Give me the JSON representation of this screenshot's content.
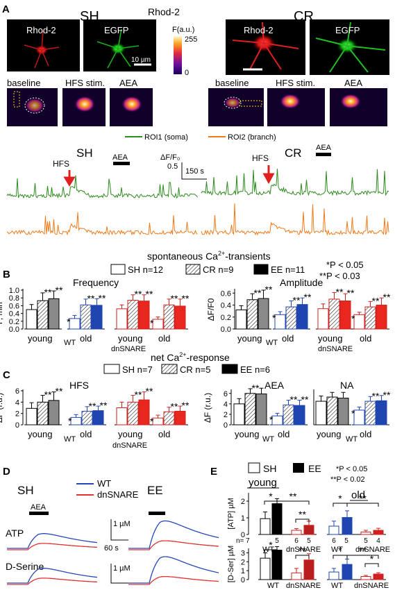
{
  "panel_letters": {
    "A": "A",
    "B": "B",
    "C": "C",
    "D": "D",
    "E": "E"
  },
  "panel_a": {
    "sh_label": "SH",
    "cr_label": "CR",
    "center_label": "Rhod-2",
    "rhod_label": "Rhod-2",
    "egfp_label": "EGFP",
    "colorbar_title": "F(a.u.)",
    "colorbar_max": "255",
    "colorbar_min": "0",
    "scalebar_label": "10 µm",
    "row2_labels": [
      "baseline",
      "HFS stim.",
      "AEA"
    ],
    "legend_roi1": "ROI1 (soma)",
    "legend_roi2": "ROI2 (branch)",
    "hfs_label": "HFS",
    "aea_label": "AEA",
    "df_label": "ΔF/F₀",
    "df_value": "0.5",
    "time_scale": "150 s",
    "colors": {
      "green": "#2e8b1f",
      "orange": "#f07a1a",
      "red": "#e02020"
    }
  },
  "panel_b": {
    "title_main": "spontaneous Ca",
    "title_sup": "2+",
    "title_rest": "-transients",
    "legend": [
      {
        "label": "SH n=12",
        "style": "open"
      },
      {
        "label": "CR  n=9",
        "style": "hatched"
      },
      {
        "label": "EE  n=11",
        "style": "filled"
      }
    ],
    "sig1": "*P < 0.05",
    "sig2": "**P < 0.03",
    "freq_title": "Frequency",
    "amp_title": "Amplitude",
    "freq_ylabel": "F, min⁻¹",
    "amp_ylabel": "ΔF/F0",
    "freq_ticks": [
      "0.0",
      "0.2",
      "0.4",
      "0.6",
      "0.8",
      "1.0"
    ],
    "amp_ticks": [
      "0.0",
      "0.2",
      "0.4",
      "0.6"
    ],
    "young": "young",
    "old": "old",
    "wt": "WT",
    "dnsnare": "dnSNARE"
  },
  "panel_c": {
    "title_main": "net Ca",
    "title_sup": "2+",
    "title_rest": "-response",
    "legend": [
      {
        "label": "SH n=7"
      },
      {
        "label": "CR  n=5"
      },
      {
        "label": "EE  n=6"
      }
    ],
    "hfs_title": "HFS",
    "aea_title": "AEA",
    "na_title": "NA",
    "ylabel": "ΔF (r.u.)",
    "hfs_ticks": [
      "0",
      "2",
      "4",
      "6"
    ],
    "aea_ticks": [
      "0",
      "2",
      "4",
      "6"
    ]
  },
  "panel_d": {
    "sh_label": "SH",
    "ee_label": "EE",
    "aea_label": "AEA",
    "wt_label": "WT",
    "dn_label": "dnSNARE",
    "atp_label": "ATP",
    "dser_label": "D-Serine",
    "scale_um": "1 µM",
    "scale_time": "60 s",
    "colors": {
      "wt": "#2447b8",
      "dn": "#e23030"
    }
  },
  "panel_e": {
    "sh_label": "SH",
    "ee_label": "EE",
    "sig1": "*P < 0.05",
    "sig2": "**P < 0.02",
    "young": "young",
    "old": "old",
    "atp_ylabel": "[ATP] µM",
    "dser_ylabel": "[D-Ser] µM",
    "atp_ticks": [
      "0",
      "1",
      "2"
    ],
    "dser_ticks": [
      "0",
      "1",
      "2",
      "3"
    ],
    "n_label": "n= 7",
    "n_values": [
      "5",
      "6",
      "5",
      "6",
      "5",
      "5",
      "4"
    ],
    "wt": "WT",
    "dnsnare": "dnSNARE"
  },
  "chart_data": [
    {
      "type": "bar",
      "id": "B-frequency",
      "title": "Frequency",
      "ylabel": "F, min⁻¹",
      "ylim": [
        0,
        1.0
      ],
      "categories": [
        "young WT",
        "old WT",
        "young dnSNARE",
        "old dnSNARE"
      ],
      "series": [
        {
          "name": "SH n=12",
          "values": [
            0.5,
            0.27,
            0.52,
            0.25
          ]
        },
        {
          "name": "CR n=9",
          "values": [
            0.73,
            0.62,
            0.74,
            0.62
          ]
        },
        {
          "name": "EE n=11",
          "values": [
            0.78,
            0.61,
            0.72,
            0.59
          ]
        }
      ],
      "errors": [
        [
          0.13,
          0.08,
          0.1,
          0.06
        ],
        [
          0.2,
          0.15,
          0.14,
          0.15
        ],
        [
          0.2,
          0.17,
          0.16,
          0.18
        ]
      ],
      "stars": [
        [
          "",
          "*",
          "",
          "*"
        ],
        [
          "**",
          "**",
          "**",
          "**"
        ],
        [
          "**",
          "**",
          "**",
          "**"
        ]
      ]
    },
    {
      "type": "bar",
      "id": "B-amplitude",
      "title": "Amplitude",
      "ylabel": "ΔF/F0",
      "ylim": [
        0,
        0.65
      ],
      "categories": [
        "young WT",
        "old WT",
        "young dnSNARE",
        "old dnSNARE"
      ],
      "series": [
        {
          "name": "SH n=12",
          "values": [
            0.32,
            0.24,
            0.34,
            0.24
          ]
        },
        {
          "name": "CR n=9",
          "values": [
            0.49,
            0.37,
            0.5,
            0.37
          ]
        },
        {
          "name": "EE n=11",
          "values": [
            0.51,
            0.41,
            0.47,
            0.4
          ]
        }
      ],
      "errors": [
        [
          0.07,
          0.05,
          0.08,
          0.04
        ],
        [
          0.1,
          0.1,
          0.11,
          0.09
        ],
        [
          0.14,
          0.11,
          0.12,
          0.12
        ]
      ],
      "stars": [
        [
          "",
          "*",
          "",
          "*"
        ],
        [
          "**",
          "**",
          "**",
          "**"
        ],
        [
          "**",
          "**",
          "**",
          "**"
        ]
      ]
    },
    {
      "type": "bar",
      "id": "C-HFS",
      "title": "HFS",
      "ylabel": "ΔF (r.u.)",
      "ylim": [
        0,
        6
      ],
      "categories": [
        "young WT",
        "old WT",
        "young dnSNARE",
        "old dnSNARE"
      ],
      "series": [
        {
          "name": "SH n=7",
          "values": [
            2.9,
            1.3,
            3.0,
            1.2
          ]
        },
        {
          "name": "CR n=5",
          "values": [
            4.0,
            2.4,
            4.0,
            2.3
          ]
        },
        {
          "name": "EE n=6",
          "values": [
            4.3,
            2.5,
            4.4,
            2.4
          ]
        }
      ],
      "errors": [
        [
          1.0,
          0.5,
          1.0,
          0.5
        ],
        [
          1.2,
          0.8,
          1.2,
          0.8
        ],
        [
          1.5,
          0.8,
          1.4,
          0.9
        ]
      ],
      "stars": [
        [
          "",
          "*",
          "",
          "*"
        ],
        [
          "**",
          "**",
          "**",
          "**"
        ],
        [
          "**",
          "**",
          "**",
          "**"
        ]
      ]
    },
    {
      "type": "bar",
      "id": "C-AEA",
      "title": "AEA",
      "ylabel": "ΔF (r.u.)",
      "ylim": [
        0,
        6.5
      ],
      "categories": [
        "young WT",
        "old WT"
      ],
      "series": [
        {
          "name": "SH n=7",
          "values": [
            4.0,
            1.7
          ]
        },
        {
          "name": "CR n=5",
          "values": [
            6.0,
            3.8
          ]
        },
        {
          "name": "EE n=6",
          "values": [
            5.9,
            3.7
          ]
        }
      ],
      "errors": [
        [
          1.0,
          0.5
        ],
        [
          0.9,
          0.9
        ],
        [
          1.1,
          1.0
        ]
      ],
      "stars": [
        [
          "",
          "*"
        ],
        [
          "**",
          "**"
        ],
        [
          "",
          "**"
        ]
      ]
    },
    {
      "type": "bar",
      "id": "C-NA",
      "title": "NA",
      "ylabel": "ΔF (r.u.)",
      "ylim": [
        0,
        6.5
      ],
      "categories": [
        "young WT",
        "old WT"
      ],
      "series": [
        {
          "name": "SH n=7",
          "values": [
            4.5,
            2.8
          ]
        },
        {
          "name": "CR n=5",
          "values": [
            5.3,
            4.5
          ]
        },
        {
          "name": "EE n=6",
          "values": [
            5.1,
            4.6
          ]
        }
      ],
      "errors": [
        [
          1.0,
          0.6
        ],
        [
          0.9,
          0.9
        ],
        [
          1.1,
          1.0
        ]
      ],
      "stars": [
        [
          "",
          "*"
        ],
        [
          "",
          "**"
        ],
        [
          "",
          "**"
        ]
      ]
    },
    {
      "type": "bar",
      "id": "E-ATP-young",
      "ylabel": "[ATP] µM",
      "ylim": [
        0,
        2.5
      ],
      "categories": [
        "WT SH",
        "WT EE",
        "dnSNARE SH",
        "dnSNARE EE"
      ],
      "values": [
        0.95,
        1.85,
        0.25,
        0.55
      ],
      "errors": [
        0.4,
        0.3,
        0.1,
        0.25
      ]
    },
    {
      "type": "bar",
      "id": "E-ATP-old",
      "ylabel": "[ATP] µM",
      "ylim": [
        0,
        2.5
      ],
      "categories": [
        "WT SH",
        "WT EE",
        "dnSNARE SH",
        "dnSNARE EE"
      ],
      "values": [
        0.5,
        1.02,
        0.15,
        0.25
      ],
      "errors": [
        0.3,
        0.4,
        0.1,
        0.12
      ]
    },
    {
      "type": "bar",
      "id": "E-DSer-young",
      "ylabel": "[D-Ser] µM",
      "ylim": [
        0,
        3.5
      ],
      "categories": [
        "WT SH",
        "WT EE",
        "dnSNARE SH",
        "dnSNARE EE"
      ],
      "values": [
        2.4,
        3.3,
        0.75,
        2.2
      ],
      "errors": [
        0.6,
        0.4,
        0.5,
        0.7
      ]
    },
    {
      "type": "bar",
      "id": "E-DSer-old",
      "ylabel": "[D-Ser] µM",
      "ylim": [
        0,
        3.5
      ],
      "categories": [
        "WT SH",
        "WT EE",
        "dnSNARE SH",
        "dnSNARE EE"
      ],
      "values": [
        0.85,
        1.7,
        0.35,
        0.62
      ],
      "errors": [
        0.4,
        0.6,
        0.12,
        0.15
      ]
    }
  ]
}
